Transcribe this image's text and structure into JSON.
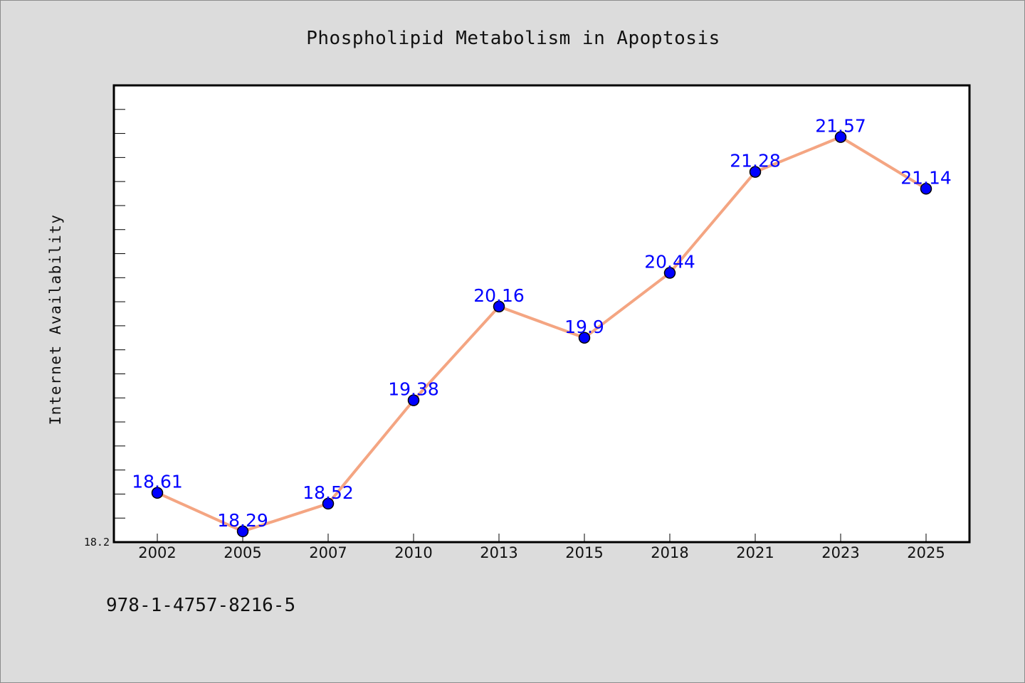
{
  "chart_data": {
    "type": "line",
    "title": "Phospholipid Metabolism in Apoptosis",
    "xlabel": "",
    "ylabel": "Internet Availability",
    "categories": [
      "2002",
      "2005",
      "2007",
      "2010",
      "2013",
      "2015",
      "2018",
      "2021",
      "2023",
      "2025"
    ],
    "series": [
      {
        "values": [
          18.61,
          18.29,
          18.52,
          19.38,
          20.16,
          19.9,
          20.44,
          21.28,
          21.57,
          21.14
        ]
      }
    ],
    "data_labels": [
      "18.61",
      "18.29",
      "18.52",
      "19.38",
      "20.16",
      "19.9",
      "20.44",
      "21.28",
      "21.57",
      "21.14"
    ],
    "ylim": [
      18.2,
      22.0
    ],
    "y_tick_labels": [
      "18.2"
    ],
    "grid": false,
    "legend": "none",
    "colors": {
      "line": "#f4a582",
      "marker": "#0000ff",
      "data_label": "#0000ff",
      "plot_background": "#ffffff",
      "page_background": "#dcdcdc"
    }
  },
  "footer": {
    "isbn": "978-1-4757-8216-5"
  }
}
